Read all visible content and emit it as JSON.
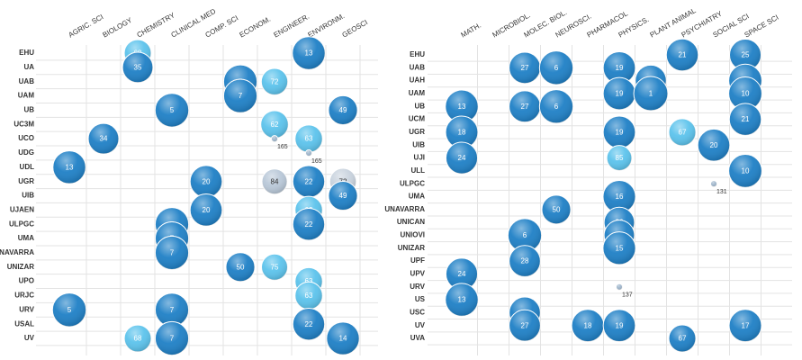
{
  "chart_data": [
    {
      "type": "scatter",
      "categories": [
        "AGRIC. SCI",
        "BIOLOGY",
        "CHEMISTRY",
        "CLINICAL MED",
        "COMP. SCI",
        "ECONOM.",
        "ENGINEER.",
        "ENVIRONM.",
        "GEOSCI"
      ],
      "rows": [
        "EHU",
        "UA",
        "UAB",
        "UAM",
        "UB",
        "UC3M",
        "UCO",
        "UDG",
        "UDL",
        "UGR",
        "UIB",
        "UJAEN",
        "ULPGC",
        "UMA",
        "UNAVARRA",
        "UNIZAR",
        "UPO",
        "URJC",
        "URV",
        "USAL",
        "UV"
      ],
      "points": [
        {
          "x": "CHEMISTRY",
          "y": "EHU",
          "value": 68,
          "color": "#5cc3ec"
        },
        {
          "x": "CHEMISTRY",
          "y": "UA",
          "value": 35,
          "color": "#1f80c6"
        },
        {
          "x": "ENVIRONM.",
          "y": "EHU",
          "value": 13,
          "color": "#1f80c6"
        },
        {
          "x": "ECONOM.",
          "y": "UAB",
          "value": 7,
          "color": "#1f80c6"
        },
        {
          "x": "ENGINEER.",
          "y": "UAB",
          "value": 72,
          "color": "#5cc3ec"
        },
        {
          "x": "ECONOM.",
          "y": "UAM",
          "value": 7,
          "color": "#1f80c6"
        },
        {
          "x": "CLINICAL MED",
          "y": "UB",
          "value": 5,
          "color": "#1f80c6"
        },
        {
          "x": "GEOSCI",
          "y": "UB",
          "value": 49,
          "color": "#1f80c6"
        },
        {
          "x": "ENGINEER.",
          "y": "UC3M",
          "value": 62,
          "color": "#5cc3ec"
        },
        {
          "x": "BIOLOGY",
          "y": "UCO",
          "value": 34,
          "color": "#1f80c6"
        },
        {
          "x": "ENGINEER.",
          "y": "UCO",
          "value": 165,
          "color": "#9fb6cc"
        },
        {
          "x": "ENVIRONM.",
          "y": "UCO",
          "value": 63,
          "color": "#5cc3ec"
        },
        {
          "x": "ENVIRONM.",
          "y": "UDG",
          "value": 165,
          "color": "#9fb6cc"
        },
        {
          "x": "AGRIC. SCI",
          "y": "UDL",
          "value": 13,
          "color": "#1f80c6"
        },
        {
          "x": "COMP. SCI",
          "y": "UGR",
          "value": 20,
          "color": "#1f80c6"
        },
        {
          "x": "ENGINEER.",
          "y": "UGR",
          "value": 84,
          "color": "#b9c8d8"
        },
        {
          "x": "ENVIRONM.",
          "y": "UGR",
          "value": 22,
          "color": "#1f80c6"
        },
        {
          "x": "GEOSCI",
          "y": "UGR",
          "value": 72,
          "color": "#c9d3de"
        },
        {
          "x": "GEOSCI",
          "y": "UIB",
          "value": 49,
          "color": "#1f80c6"
        },
        {
          "x": "COMP. SCI",
          "y": "UJAEN",
          "value": 20,
          "color": "#1f80c6"
        },
        {
          "x": "ENVIRONM.",
          "y": "UJAEN",
          "value": 63,
          "color": "#5cc3ec"
        },
        {
          "x": "CLINICAL MED",
          "y": "ULPGC",
          "value": 7,
          "color": "#1f80c6"
        },
        {
          "x": "ENVIRONM.",
          "y": "ULPGC",
          "value": 22,
          "color": "#1f80c6"
        },
        {
          "x": "CLINICAL MED",
          "y": "UMA",
          "value": 7,
          "color": "#1f80c6"
        },
        {
          "x": "CLINICAL MED",
          "y": "UNAVARRA",
          "value": 7,
          "color": "#1f80c6"
        },
        {
          "x": "ECONOM.",
          "y": "UNIZAR",
          "value": 50,
          "color": "#1f80c6"
        },
        {
          "x": "ENGINEER.",
          "y": "UNIZAR",
          "value": 75,
          "color": "#5cc3ec"
        },
        {
          "x": "ENVIRONM.",
          "y": "UPO",
          "value": 63,
          "color": "#5cc3ec"
        },
        {
          "x": "ENVIRONM.",
          "y": "URJC",
          "value": 63,
          "color": "#5cc3ec"
        },
        {
          "x": "AGRIC. SCI",
          "y": "URV",
          "value": 5,
          "color": "#1f80c6"
        },
        {
          "x": "CLINICAL MED",
          "y": "URV",
          "value": 7,
          "color": "#1f80c6"
        },
        {
          "x": "ENVIRONM.",
          "y": "USAL",
          "value": 22,
          "color": "#1f80c6"
        },
        {
          "x": "CHEMISTRY",
          "y": "UV",
          "value": 68,
          "color": "#5cc3ec"
        },
        {
          "x": "CLINICAL MED",
          "y": "UV",
          "value": 7,
          "color": "#1f80c6"
        },
        {
          "x": "GEOSCI",
          "y": "UV",
          "value": 14,
          "color": "#1f80c6"
        }
      ]
    },
    {
      "type": "scatter",
      "categories": [
        "MATH.",
        "MICROBIOL.",
        "MOLEC. BIOL.",
        "NEUROSCI.",
        "PHARMACOL",
        "PHYSICS.",
        "PLANT ANIMAL",
        "PSYCHIATRY",
        "SOCIAL SCI",
        "SPACE SCI"
      ],
      "rows": [
        "EHU",
        "UAB",
        "UAH",
        "UAM",
        "UB",
        "UCM",
        "UGR",
        "UIB",
        "UJI",
        "ULL",
        "ULPGC",
        "UMA",
        "UNAVARRA",
        "UNICAN",
        "UNIOVI",
        "UNIZAR",
        "UPF",
        "UPV",
        "URV",
        "US",
        "USC",
        "UV",
        "UVA"
      ],
      "points": [
        {
          "x": "PSYCHIATRY",
          "y": "EHU",
          "value": 21,
          "color": "#1f80c6"
        },
        {
          "x": "SPACE SCI",
          "y": "EHU",
          "value": 25,
          "color": "#1f80c6"
        },
        {
          "x": "MOLEC. BIOL.",
          "y": "UAB",
          "value": 27,
          "color": "#1f80c6"
        },
        {
          "x": "NEUROSCI.",
          "y": "UAB",
          "value": 6,
          "color": "#1f80c6"
        },
        {
          "x": "PHYSICS.",
          "y": "UAB",
          "value": 19,
          "color": "#1f80c6"
        },
        {
          "x": "PLANT ANIMAL",
          "y": "UAH",
          "value": 29,
          "color": "#1f80c6"
        },
        {
          "x": "SPACE SCI",
          "y": "UAH",
          "value": 10,
          "color": "#1f80c6"
        },
        {
          "x": "PHYSICS.",
          "y": "UAM",
          "value": 19,
          "color": "#1f80c6"
        },
        {
          "x": "PLANT ANIMAL",
          "y": "UAM",
          "value": 1,
          "color": "#1f80c6"
        },
        {
          "x": "SPACE SCI",
          "y": "UAM",
          "value": 10,
          "color": "#1f80c6"
        },
        {
          "x": "MATH.",
          "y": "UB",
          "value": 13,
          "color": "#1f80c6"
        },
        {
          "x": "MOLEC. BIOL.",
          "y": "UB",
          "value": 27,
          "color": "#1f80c6"
        },
        {
          "x": "NEUROSCI.",
          "y": "UB",
          "value": 6,
          "color": "#1f80c6"
        },
        {
          "x": "SPACE SCI",
          "y": "UCM",
          "value": 21,
          "color": "#1f80c6"
        },
        {
          "x": "MATH.",
          "y": "UGR",
          "value": 18,
          "color": "#1f80c6"
        },
        {
          "x": "PHYSICS.",
          "y": "UGR",
          "value": 19,
          "color": "#1f80c6"
        },
        {
          "x": "PSYCHIATRY",
          "y": "UGR",
          "value": 67,
          "color": "#5cc3ec"
        },
        {
          "x": "SOCIAL SCI",
          "y": "UIB",
          "value": 20,
          "color": "#1f80c6"
        },
        {
          "x": "MATH.",
          "y": "UJI",
          "value": 24,
          "color": "#1f80c6"
        },
        {
          "x": "PHYSICS.",
          "y": "UJI",
          "value": 85,
          "color": "#5cc3ec"
        },
        {
          "x": "SPACE SCI",
          "y": "ULL",
          "value": 10,
          "color": "#1f80c6"
        },
        {
          "x": "SOCIAL SCI",
          "y": "ULPGC",
          "value": 131,
          "color": "#9fb6cc"
        },
        {
          "x": "PHYSICS.",
          "y": "UMA",
          "value": 16,
          "color": "#1f80c6"
        },
        {
          "x": "NEUROSCI.",
          "y": "UNAVARRA",
          "value": 50,
          "color": "#1f80c6"
        },
        {
          "x": "PHYSICS.",
          "y": "UNICAN",
          "value": 36,
          "color": "#1f80c6"
        },
        {
          "x": "PHYSICS.",
          "y": "UNIOVI",
          "value": 36,
          "color": "#1f80c6"
        },
        {
          "x": "MOLEC. BIOL.",
          "y": "UNIOVI",
          "value": 6,
          "color": "#1f80c6"
        },
        {
          "x": "PHYSICS.",
          "y": "UNIZAR",
          "value": 15,
          "color": "#1f80c6"
        },
        {
          "x": "MOLEC. BIOL.",
          "y": "UPF",
          "value": 28,
          "color": "#1f80c6"
        },
        {
          "x": "MATH.",
          "y": "UPV",
          "value": 24,
          "color": "#1f80c6"
        },
        {
          "x": "PHYSICS.",
          "y": "URV",
          "value": 137,
          "color": "#9fb6cc"
        },
        {
          "x": "MATH.",
          "y": "US",
          "value": 13,
          "color": "#1f80c6"
        },
        {
          "x": "MOLEC. BIOL.",
          "y": "USC",
          "value": 28,
          "color": "#1f80c6"
        },
        {
          "x": "MOLEC. BIOL.",
          "y": "UV",
          "value": 27,
          "color": "#1f80c6"
        },
        {
          "x": "PHARMACOL",
          "y": "UV",
          "value": 18,
          "color": "#1f80c6"
        },
        {
          "x": "PHYSICS.",
          "y": "UV",
          "value": 19,
          "color": "#1f80c6"
        },
        {
          "x": "SPACE SCI",
          "y": "UV",
          "value": 17,
          "color": "#1f80c6"
        },
        {
          "x": "PSYCHIATRY",
          "y": "UVA",
          "value": 67,
          "color": "#1f80c6"
        }
      ]
    }
  ]
}
